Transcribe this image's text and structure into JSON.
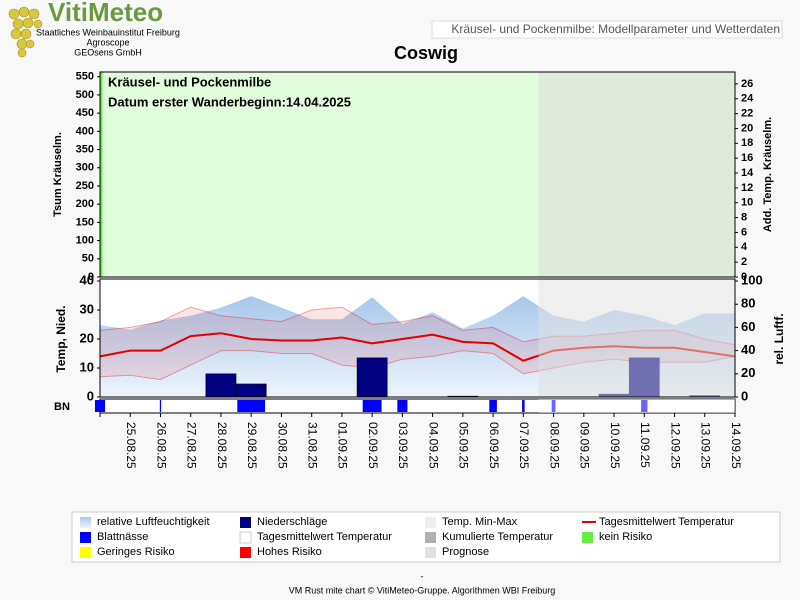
{
  "logo": {
    "title": "VitiMeteo",
    "lines": [
      "Staatliches Weinbauinstitut Freiburg",
      "Agroscope",
      "GEOsens GmbH"
    ]
  },
  "header_title": "Kräusel- und Pockenmilbe: Modellparameter und Wetterdaten",
  "footer": [
    "-",
    "VM Rust mite chart © VitiMeteo-Gruppe. Algorithmen WBI Freiburg"
  ],
  "chart_data": [
    {
      "type": "area",
      "title": "Coswig",
      "annotations": [
        "Kräusel- und Pockenmilbe",
        "Datum  erster Wanderbeginn:14.04.2025"
      ],
      "ylabel": "Tsum Kräuselm.",
      "y2label": "Add. Temp. Kräuselm.",
      "ylim": [
        0,
        563
      ],
      "yticks": [
        0,
        50,
        100,
        150,
        200,
        250,
        300,
        350,
        400,
        450,
        500,
        550
      ],
      "y2lim": [
        0,
        27.6
      ],
      "y2ticks": [
        0,
        2,
        4,
        6,
        8,
        10,
        12,
        14,
        16,
        18,
        20,
        22,
        24,
        26
      ]
    },
    {
      "type": "combo",
      "ylabel": "Temp, Nied.",
      "y2label": "rel. Luftf.",
      "bn_label": "BN",
      "forecast_from": "08.09.25",
      "categories": [
        null,
        "25.08.25",
        "26.08.25",
        "27.08.25",
        "28.08.25",
        "29.08.25",
        "30.08.25",
        "31.08.25",
        "01.09.25",
        "02.09.25",
        "03.09.25",
        "04.09.25",
        "05.09.25",
        "06.09.25",
        "07.09.25",
        "08.09.25",
        "09.09.25",
        "10.09.25",
        "11.09.25",
        "12.09.25",
        "13.09.25",
        "14.09.25"
      ],
      "ylim": [
        0,
        40
      ],
      "yticks": [
        0,
        10,
        20,
        30,
        40
      ],
      "y2lim": [
        0,
        100
      ],
      "y2ticks": [
        0,
        20,
        40,
        60,
        80,
        100
      ],
      "series": [
        {
          "name": "relative Luftfeuchtigkeit",
          "color": "#a8c8ec",
          "kind": "area",
          "axis": "y2",
          "values": [
            62,
            58,
            66,
            70,
            77,
            87,
            77,
            67,
            67,
            86,
            63,
            73,
            59,
            70,
            87,
            70,
            65,
            75,
            70,
            62,
            72,
            72
          ]
        },
        {
          "name": "Niederschläge",
          "color": "#000080",
          "kind": "bar",
          "values": [
            0,
            0,
            0,
            0,
            8,
            4.5,
            0,
            0,
            0,
            13.5,
            0,
            0,
            0.3,
            0,
            0,
            0,
            0,
            1,
            13.5,
            0,
            0.5,
            0
          ]
        },
        {
          "name": "Temp. Min-Max",
          "color": "#eeeeee",
          "kind": "band",
          "high": [
            23,
            24,
            26,
            31,
            28,
            27,
            26,
            30,
            31,
            25,
            26,
            28,
            23,
            24,
            19,
            21,
            21,
            22,
            23,
            23,
            20,
            18
          ],
          "low": [
            7,
            7.5,
            6,
            11,
            16,
            16,
            15,
            15,
            11,
            10,
            13,
            14,
            16,
            15,
            8,
            10,
            12,
            13,
            12,
            12,
            12,
            14
          ]
        },
        {
          "name": "Tagesmittelwert Temperatur",
          "color": "#e00000",
          "kind": "line",
          "values": [
            14,
            16,
            16,
            21,
            22,
            20,
            19.5,
            19.5,
            20.5,
            18.5,
            20,
            21.5,
            19,
            18.5,
            12.5,
            16,
            17,
            17.5,
            17,
            17,
            15.5,
            14
          ]
        },
        {
          "name": "Blattnässe",
          "color": "#0000ff",
          "kind": "strip",
          "values": [
            8,
            0,
            1,
            0,
            0,
            22,
            0,
            0,
            0,
            15,
            8,
            0,
            0,
            6,
            2,
            3,
            0,
            0,
            5,
            0,
            0,
            0
          ]
        },
        {
          "name": "Tagesmittelwert Temperatur",
          "color": "#ffffff"
        },
        {
          "name": "Kumulierte Temperatur",
          "color": "#b0b0b0"
        },
        {
          "name": "kein Risiko",
          "color": "#66ee44"
        },
        {
          "name": "Geringes Risiko",
          "color": "#ffff00"
        },
        {
          "name": "Hohes Risiko",
          "color": "#ff0000"
        },
        {
          "name": "Prognose",
          "color": "#e0e0e0"
        }
      ]
    }
  ]
}
